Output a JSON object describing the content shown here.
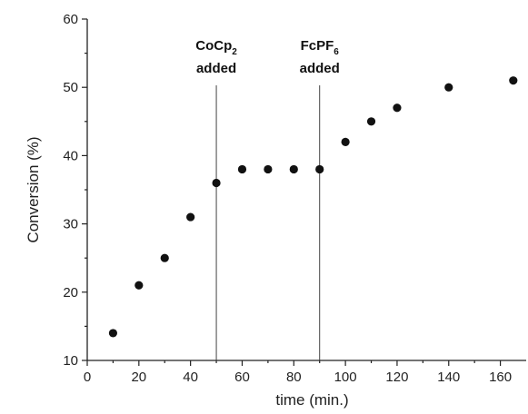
{
  "chart_data": {
    "type": "scatter",
    "title": "",
    "xlabel": "time (min.)",
    "ylabel": "Conversion (%)",
    "xlim": [
      0,
      170
    ],
    "ylim": [
      10,
      60
    ],
    "xticks": [
      0,
      20,
      40,
      60,
      80,
      100,
      120,
      140,
      160
    ],
    "yticks": [
      10,
      20,
      30,
      40,
      50,
      60
    ],
    "grid": false,
    "point_color": "#111111",
    "series": [
      {
        "x": [
          10,
          20,
          30,
          40,
          50,
          60,
          70,
          80,
          90,
          100,
          110,
          120,
          140,
          165
        ],
        "y": [
          14,
          21,
          25,
          31,
          36,
          38,
          38,
          38,
          38,
          42,
          45,
          47,
          50,
          51
        ]
      }
    ],
    "annotations": [
      {
        "x": 50,
        "label": "CoCp",
        "subscript": "2",
        "line2": "added"
      },
      {
        "x": 90,
        "label": "FcPF",
        "subscript": "6",
        "line2": "added"
      }
    ]
  }
}
